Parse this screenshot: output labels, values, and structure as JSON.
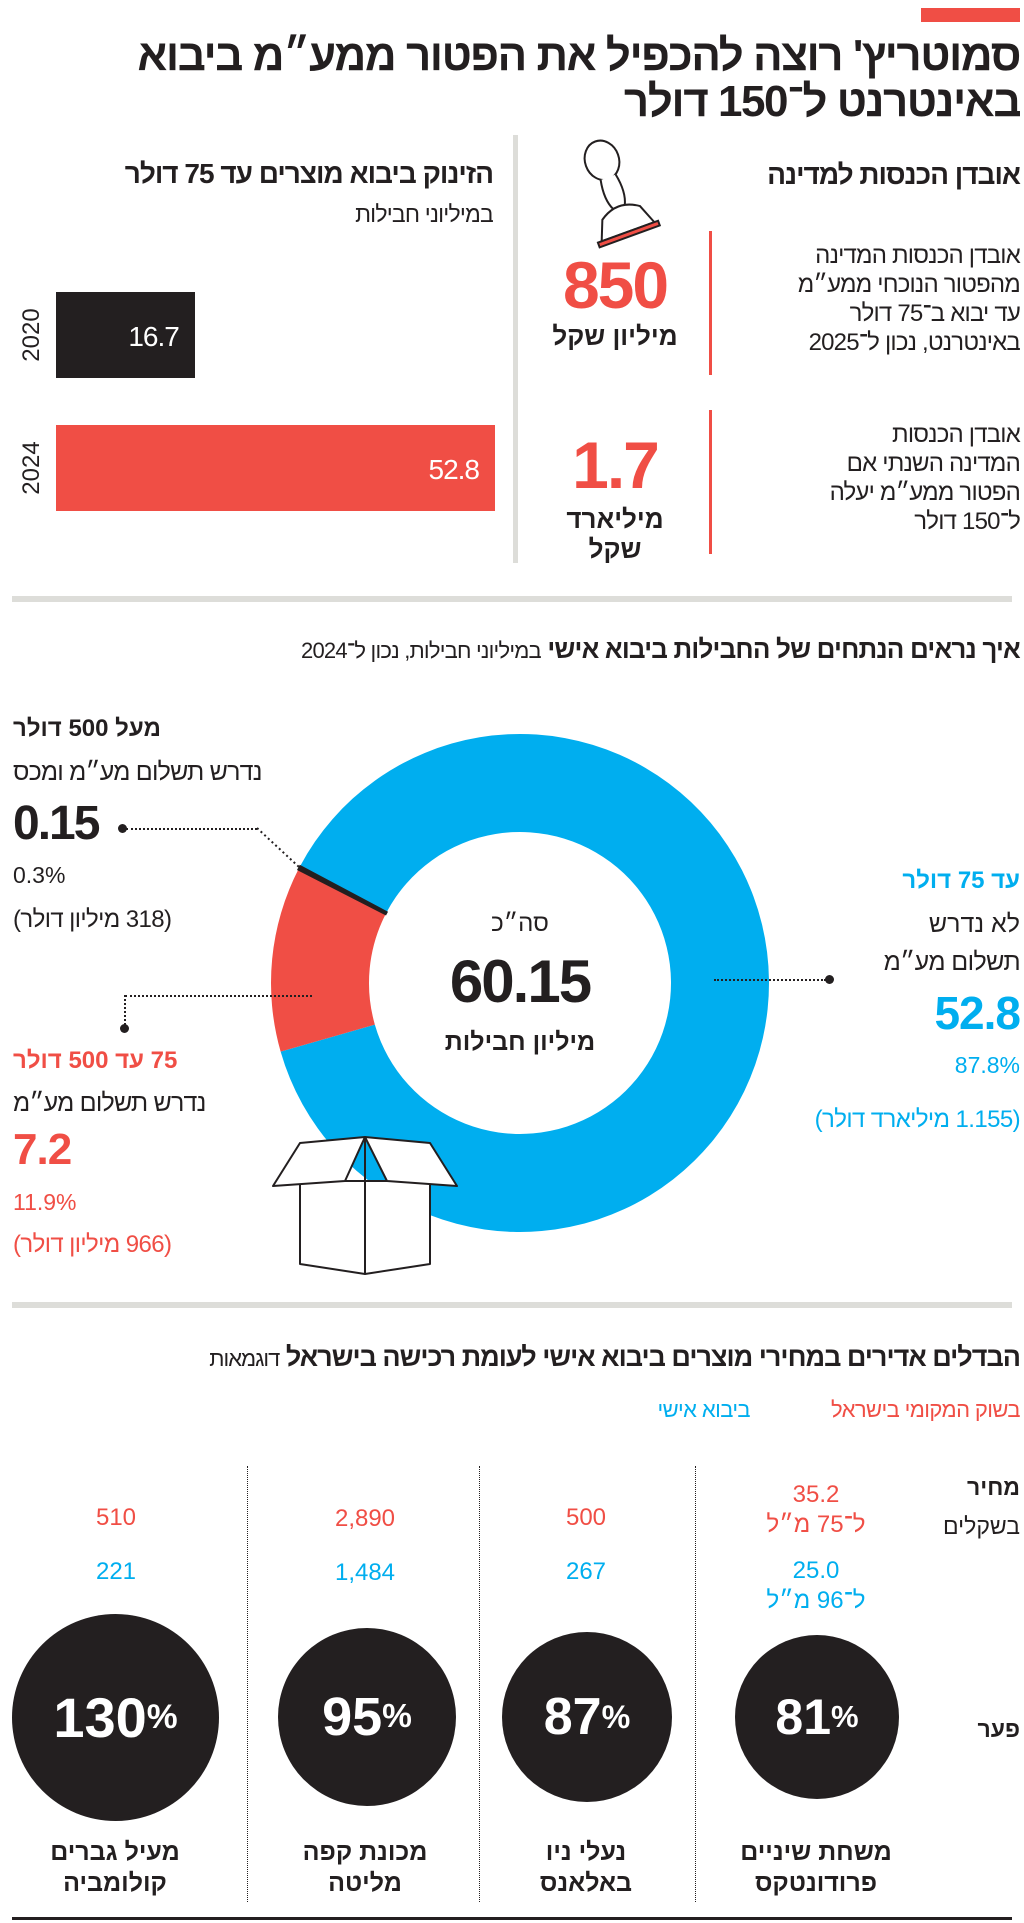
{
  "colors": {
    "red": "#f04e45",
    "blue": "#00aeef",
    "black": "#231f20",
    "divider": "#ddddd9"
  },
  "header": {
    "title_line1": "סמוטריץ' רוצה להכפיל את הפטור ממע״מ ביבוא",
    "title_line2": "באינטרנט ל־150 דולר"
  },
  "revenue": {
    "heading": "אובדן הכנסות למדינה",
    "icon": "rubber-stamp-icon",
    "stat1": {
      "lines": [
        "אובדן הכנסות המדינה",
        "מהפטור הנוכחי ממע״מ",
        "עד יבוא ב־75 דולר",
        "באינטרנט, נכון ל־2025"
      ],
      "value": "850",
      "unit": "מיליון שקל"
    },
    "stat2": {
      "lines": [
        "אובדן הכנסות",
        "המדינה השנתי אם",
        "הפטור ממע״מ יעלה",
        "ל־150 דולר"
      ],
      "value": "1.7",
      "unit_line1": "מיליארד",
      "unit_line2": "שקל"
    }
  },
  "chart_data": [
    {
      "type": "bar",
      "orientation": "horizontal",
      "title": "הזינוק ביבוא מוצרים עד 75 דולר",
      "subtitle": "במיליוני חבילות",
      "categories": [
        "2020",
        "2024"
      ],
      "values": [
        16.7,
        52.8
      ],
      "value_labels": [
        "16.7",
        "52.8"
      ],
      "bar_colors": [
        "#231f20",
        "#f04e45"
      ]
    },
    {
      "type": "pie",
      "variant": "donut",
      "title": "איך נראים הנתחים של החבילות ביבוא אישי",
      "subtitle": "במיליוני חבילות, נכון ל־2024",
      "center": {
        "label": "סה״כ",
        "value": "60.15",
        "unit": "מיליון חבילות"
      },
      "slices": [
        {
          "name": "עד 75 דולר",
          "note": "לא נדרש",
          "note2": "תשלום מע״מ",
          "value": 52.8,
          "value_label": "52.8",
          "percent": "87.8%",
          "amount": "(1.155 מיליארד דולר)",
          "color": "#00aeef"
        },
        {
          "name": "75 עד 500 דולר",
          "note": "נדרש תשלום מע״מ",
          "value": 7.2,
          "value_label": "7.2",
          "percent": "11.9%",
          "amount": "(966 מיליון דולר)",
          "color": "#f04e45"
        },
        {
          "name": "מעל 500 דולר",
          "note": "נדרש תשלום מע״מ ומכס",
          "value": 0.15,
          "value_label": "0.15",
          "percent": "0.3%",
          "amount": "(318 מיליון דולר)",
          "color": "#231f20"
        }
      ],
      "icon": "open-box-icon"
    }
  ],
  "prices": {
    "title": "הבדלים אדירים במחירי מוצרים ביבוא אישי לעומת רכישה בישראל",
    "title_suffix": "דוגמאות",
    "legend": {
      "local": "בשוק המקומי בישראל",
      "import": "ביבוא אישי"
    },
    "row_price_label": "מחיר",
    "row_price_sublabel": "בשקלים",
    "row_gap_label": "פער",
    "percent_sign": "%",
    "items": [
      {
        "name1": "משחת שיניים",
        "name2": "פרודונטקס",
        "local": "35.2",
        "local_note": "ל־75 מ״ל",
        "import": "25.0",
        "import_note": "ל־96 מ״ל",
        "gap": "81"
      },
      {
        "name1": "נעלי ניו",
        "name2": "באלאנס",
        "local": "500",
        "import": "267",
        "gap": "87"
      },
      {
        "name1": "מכונת קפה",
        "name2": "מליטה",
        "local": "2,890",
        "import": "1,484",
        "gap": "95"
      },
      {
        "name1": "מעיל גברים",
        "name2": "קולומביה",
        "local": "510",
        "import": "221",
        "gap": "130"
      }
    ]
  }
}
